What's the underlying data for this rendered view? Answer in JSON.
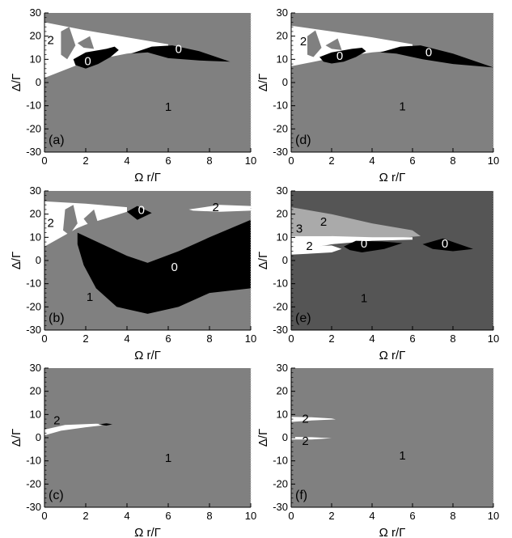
{
  "chart_data": [
    {
      "type": "heatmap",
      "panel": "(a)",
      "xlabel": "Ω r/Γ",
      "ylabel": "Δ/Γ",
      "xlim": [
        0,
        10
      ],
      "ylim": [
        -30,
        30
      ],
      "xticks": [
        "0",
        "2",
        "4",
        "6",
        "8",
        "10"
      ],
      "yticks": [
        "30",
        "20",
        "10",
        "0",
        "-10",
        "-20",
        "-30"
      ],
      "background": "#808080",
      "regions": [
        {
          "fill": "#ffffff",
          "points": [
            [
              0,
              26
            ],
            [
              2,
              22.5
            ],
            [
              4,
              19.5
            ],
            [
              6,
              16.5
            ],
            [
              6,
              14.5
            ],
            [
              4,
              12.5
            ],
            [
              2,
              9
            ],
            [
              0,
              2
            ]
          ]
        },
        {
          "fill": "#808080",
          "points": [
            [
              0.8,
              22
            ],
            [
              1.2,
              24
            ],
            [
              1.5,
              16
            ],
            [
              1.1,
              10
            ],
            [
              0.8,
              12
            ]
          ]
        },
        {
          "fill": "#808080",
          "points": [
            [
              1.6,
              17
            ],
            [
              2.2,
              20
            ],
            [
              2.4,
              14.5
            ],
            [
              1.9,
              15
            ]
          ]
        },
        {
          "fill": "#000000",
          "points": [
            [
              1.4,
              10
            ],
            [
              2,
              13
            ],
            [
              3,
              14.5
            ],
            [
              3.4,
              15.5
            ],
            [
              3.6,
              14
            ],
            [
              3.2,
              11
            ],
            [
              2.6,
              8
            ],
            [
              2,
              6
            ],
            [
              1.5,
              7.5
            ]
          ]
        },
        {
          "fill": "#000000",
          "points": [
            [
              4.2,
              12.5
            ],
            [
              5.2,
              15.5
            ],
            [
              6.2,
              16
            ],
            [
              7.5,
              13.5
            ],
            [
              9,
              9
            ],
            [
              7.5,
              9.5
            ],
            [
              6,
              10.5
            ],
            [
              5,
              13
            ]
          ]
        }
      ],
      "labels": [
        {
          "text": "2",
          "x": 0.3,
          "y": 16.5,
          "color": "#000000"
        },
        {
          "text": "0",
          "x": 2.1,
          "y": 7.5,
          "color": "#ffffff"
        },
        {
          "text": "0",
          "x": 6.5,
          "y": 12.8,
          "color": "#ffffff"
        },
        {
          "text": "1",
          "x": 6.0,
          "y": -12.2,
          "color": "#000000"
        }
      ],
      "tag": "(a)"
    },
    {
      "type": "heatmap",
      "panel": "(b)",
      "xlabel": "Ω r/Γ",
      "ylabel": "Δ/Γ",
      "xlim": [
        0,
        10
      ],
      "ylim": [
        -30,
        30
      ],
      "xticks": [
        "0",
        "2",
        "4",
        "6",
        "8",
        "10"
      ],
      "yticks": [
        "30",
        "20",
        "10",
        "0",
        "-10",
        "-20",
        "-30"
      ],
      "background": "#808080",
      "regions": [
        {
          "fill": "#ffffff",
          "points": [
            [
              0,
              25.5
            ],
            [
              2,
              24.5
            ],
            [
              4,
              23
            ],
            [
              4,
              21
            ],
            [
              2,
              15.5
            ],
            [
              1.6,
              14
            ],
            [
              0,
              6
            ]
          ]
        },
        {
          "fill": "#808080",
          "points": [
            [
              1,
              22
            ],
            [
              1.4,
              24
            ],
            [
              1.6,
              16
            ],
            [
              1.2,
              11
            ],
            [
              0.9,
              13
            ]
          ]
        },
        {
          "fill": "#808080",
          "points": [
            [
              1.9,
              18
            ],
            [
              2.4,
              22
            ],
            [
              2.6,
              16
            ],
            [
              2.2,
              14.5
            ]
          ]
        },
        {
          "fill": "#000000",
          "points": [
            [
              4,
              21
            ],
            [
              4.5,
              23.5
            ],
            [
              5.2,
              20.5
            ],
            [
              4.5,
              17.5
            ]
          ]
        },
        {
          "fill": "#ffffff",
          "points": [
            [
              7,
              22
            ],
            [
              8.5,
              24
            ],
            [
              10,
              23.5
            ],
            [
              10,
              21.5
            ],
            [
              8.5,
              21
            ],
            [
              7.2,
              21.5
            ]
          ]
        },
        {
          "fill": "#000000",
          "points": [
            [
              1.6,
              12
            ],
            [
              2.8,
              7
            ],
            [
              4,
              2
            ],
            [
              5,
              -1
            ],
            [
              6.5,
              4
            ],
            [
              8,
              10
            ],
            [
              10,
              17.5
            ],
            [
              10,
              -12
            ],
            [
              8,
              -14
            ],
            [
              6.5,
              -20
            ],
            [
              5,
              -23
            ],
            [
              3.5,
              -20
            ],
            [
              2.5,
              -12
            ],
            [
              1.9,
              -2
            ],
            [
              1.6,
              7
            ]
          ]
        }
      ],
      "labels": [
        {
          "text": "0",
          "x": 4.7,
          "y": 20.0,
          "color": "#ffffff"
        },
        {
          "text": "2",
          "x": 8.3,
          "y": 21.2,
          "color": "#000000"
        },
        {
          "text": "2",
          "x": 0.3,
          "y": 14.5,
          "color": "#000000"
        },
        {
          "text": "0",
          "x": 6.3,
          "y": -4.5,
          "color": "#ffffff"
        },
        {
          "text": "1",
          "x": 2.2,
          "y": -17.5,
          "color": "#000000"
        }
      ],
      "tag": "(b)"
    },
    {
      "type": "heatmap",
      "panel": "(c)",
      "xlabel": "Ω r/Γ",
      "ylabel": "Δ/Γ",
      "xlim": [
        0,
        10
      ],
      "ylim": [
        -30,
        30
      ],
      "xticks": [
        "0",
        "2",
        "4",
        "6",
        "8",
        "10"
      ],
      "yticks": [
        "30",
        "20",
        "10",
        "0",
        "-10",
        "-20",
        "-30"
      ],
      "background": "#808080",
      "regions": [
        {
          "fill": "#ffffff",
          "points": [
            [
              0,
              3.5
            ],
            [
              1,
              5.5
            ],
            [
              2.5,
              6
            ],
            [
              3.3,
              5.8
            ],
            [
              2,
              4.5
            ],
            [
              0.8,
              3
            ],
            [
              0,
              1
            ]
          ]
        },
        {
          "fill": "#000000",
          "points": [
            [
              2.6,
              5.7
            ],
            [
              3,
              6.2
            ],
            [
              3.3,
              5.8
            ],
            [
              3,
              5.2
            ]
          ]
        }
      ],
      "labels": [
        {
          "text": "2",
          "x": 0.6,
          "y": 5.8,
          "color": "#000000"
        },
        {
          "text": "1",
          "x": 6.0,
          "y": -10.5,
          "color": "#000000"
        }
      ],
      "tag": "(c)"
    },
    {
      "type": "heatmap",
      "panel": "(d)",
      "xlabel": "Ω r/Γ",
      "ylabel": "Δ/Γ",
      "xlim": [
        0,
        10
      ],
      "ylim": [
        -30,
        30
      ],
      "xticks": [
        "0",
        "2",
        "4",
        "6",
        "8",
        "10"
      ],
      "yticks": [
        "30",
        "20",
        "10",
        "0",
        "-10",
        "-20",
        "-30"
      ],
      "background": "#808080",
      "regions": [
        {
          "fill": "#ffffff",
          "points": [
            [
              0,
              24.5
            ],
            [
              2,
              22
            ],
            [
              4,
              19.5
            ],
            [
              6,
              16.5
            ],
            [
              6,
              14.5
            ],
            [
              4,
              13
            ],
            [
              2,
              10.5
            ],
            [
              0,
              7
            ]
          ]
        },
        {
          "fill": "#808080",
          "points": [
            [
              0.8,
              20
            ],
            [
              1.2,
              22.5
            ],
            [
              1.5,
              15
            ],
            [
              1.1,
              11
            ],
            [
              0.8,
              12
            ]
          ]
        },
        {
          "fill": "#808080",
          "points": [
            [
              1.7,
              16
            ],
            [
              2.3,
              19
            ],
            [
              2.5,
              14
            ],
            [
              2,
              14.5
            ]
          ]
        },
        {
          "fill": "#000000",
          "points": [
            [
              1.4,
              11
            ],
            [
              2,
              13
            ],
            [
              3,
              14.5
            ],
            [
              3.5,
              15
            ],
            [
              3.7,
              13.5
            ],
            [
              3.2,
              11
            ],
            [
              2.6,
              9
            ],
            [
              2,
              8.2
            ],
            [
              1.6,
              9
            ]
          ]
        },
        {
          "fill": "#000000",
          "points": [
            [
              4.4,
              13
            ],
            [
              5.4,
              15.5
            ],
            [
              6.4,
              16
            ],
            [
              8,
              12.5
            ],
            [
              10,
              6.5
            ],
            [
              8,
              8
            ],
            [
              6.5,
              10
            ],
            [
              5.2,
              12.5
            ]
          ]
        }
      ],
      "labels": [
        {
          "text": "2",
          "x": 0.6,
          "y": 16.0,
          "color": "#000000"
        },
        {
          "text": "0",
          "x": 2.4,
          "y": 9.8,
          "color": "#ffffff"
        },
        {
          "text": "0",
          "x": 6.8,
          "y": 11.3,
          "color": "#ffffff"
        },
        {
          "text": "1",
          "x": 5.5,
          "y": -12.0,
          "color": "#000000"
        }
      ],
      "tag": "(d)"
    },
    {
      "type": "heatmap",
      "panel": "(e)",
      "xlabel": "Ω r/Γ",
      "ylabel": "Δ/Γ",
      "xlim": [
        0,
        10
      ],
      "ylim": [
        -30,
        30
      ],
      "xticks": [
        "0",
        "2",
        "4",
        "6",
        "8",
        "10"
      ],
      "yticks": [
        "30",
        "20",
        "10",
        "0",
        "-10",
        "-20",
        "-30"
      ],
      "background": "#555555",
      "regions": [
        {
          "fill": "#aaaaaa",
          "points": [
            [
              0,
              23
            ],
            [
              2,
              20
            ],
            [
              4,
              16
            ],
            [
              6,
              13
            ],
            [
              6.4,
              10.5
            ],
            [
              4,
              9
            ],
            [
              2,
              7
            ],
            [
              0,
              2.5
            ]
          ]
        },
        {
          "fill": "#ffffff",
          "points": [
            [
              0,
              10.5
            ],
            [
              2,
              10.5
            ],
            [
              4,
              10
            ],
            [
              6,
              10
            ],
            [
              6,
              9
            ],
            [
              4,
              8.5
            ],
            [
              2,
              7
            ],
            [
              0,
              4
            ]
          ]
        },
        {
          "fill": "#ffffff",
          "points": [
            [
              0,
              4
            ],
            [
              1,
              6
            ],
            [
              2,
              6.5
            ],
            [
              2.5,
              5
            ],
            [
              2,
              3.5
            ],
            [
              0,
              2.5
            ]
          ]
        },
        {
          "fill": "#aaaaaa",
          "points": [
            [
              0,
              10.5
            ],
            [
              1,
              11.5
            ],
            [
              2,
              12.5
            ],
            [
              2,
              10.5
            ]
          ]
        },
        {
          "fill": "#000000",
          "points": [
            [
              2.6,
              6
            ],
            [
              3.2,
              8.5
            ],
            [
              4.5,
              8.2
            ],
            [
              5.5,
              7.5
            ],
            [
              4.6,
              5
            ],
            [
              3.5,
              3.5
            ],
            [
              2.9,
              4.5
            ]
          ]
        },
        {
          "fill": "#000000",
          "points": [
            [
              6.5,
              7
            ],
            [
              7.5,
              9.5
            ],
            [
              8,
              8
            ],
            [
              9,
              5
            ],
            [
              8,
              4
            ],
            [
              7,
              5
            ]
          ]
        }
      ],
      "labels": [
        {
          "text": "2",
          "x": 1.6,
          "y": 15.0,
          "color": "#000000"
        },
        {
          "text": "3",
          "x": 0.4,
          "y": 12.0,
          "color": "#000000"
        },
        {
          "text": "2",
          "x": 0.9,
          "y": 4.5,
          "color": "#000000"
        },
        {
          "text": "0",
          "x": 3.6,
          "y": 5.5,
          "color": "#ffffff"
        },
        {
          "text": "0",
          "x": 7.6,
          "y": 5.5,
          "color": "#ffffff"
        },
        {
          "text": "1",
          "x": 3.6,
          "y": -18.0,
          "color": "#000000"
        }
      ],
      "tag": "(e)"
    },
    {
      "type": "heatmap",
      "panel": "(f)",
      "xlabel": "Ω r/Γ",
      "ylabel": "Δ/Γ",
      "xlim": [
        0,
        10
      ],
      "ylim": [
        -30,
        30
      ],
      "xticks": [
        "0",
        "2",
        "4",
        "6",
        "8",
        "10"
      ],
      "yticks": [
        "30",
        "20",
        "10",
        "0",
        "-10",
        "-20",
        "-30"
      ],
      "background": "#808080",
      "regions": [
        {
          "fill": "#ffffff",
          "points": [
            [
              0,
              9
            ],
            [
              1,
              8.8
            ],
            [
              2,
              8.3
            ],
            [
              2.2,
              7.9
            ],
            [
              1,
              7.4
            ],
            [
              0,
              6.8
            ]
          ]
        },
        {
          "fill": "#ffffff",
          "points": [
            [
              0,
              0.4
            ],
            [
              1,
              0.2
            ],
            [
              2,
              -0.2
            ],
            [
              1,
              -0.8
            ],
            [
              0,
              -0.8
            ]
          ]
        }
      ],
      "labels": [
        {
          "text": "2",
          "x": 0.7,
          "y": 6.5,
          "color": "#000000"
        },
        {
          "text": "2",
          "x": 0.7,
          "y": -3.2,
          "color": "#000000"
        },
        {
          "text": "1",
          "x": 5.5,
          "y": -9.5,
          "color": "#000000"
        }
      ],
      "tag": "(f)"
    }
  ]
}
